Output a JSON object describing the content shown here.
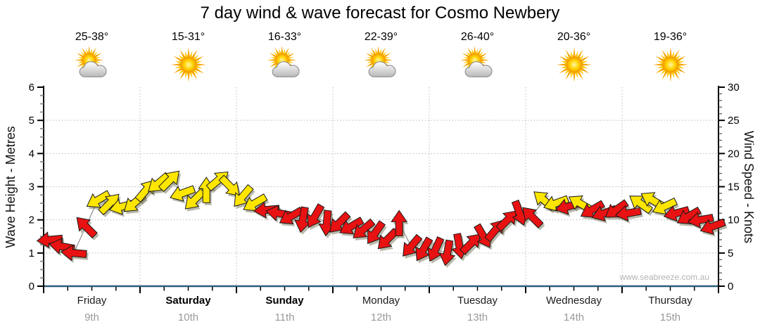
{
  "page": {
    "watermark": "www.seabreeze.com.au"
  },
  "chart_data": {
    "type": "scatter",
    "marker": "wind-direction-arrow",
    "title": "7 day wind & wave forecast for Cosmo Newbery",
    "left_axis": {
      "label": "Wave Height - Metres",
      "min": 0,
      "max": 6,
      "major_ticks": [
        0,
        1,
        2,
        3,
        4,
        5,
        6
      ],
      "minor_step": 0.25
    },
    "right_axis": {
      "label": "Wind Speed - Knots",
      "min": 0,
      "max": 30,
      "major_ticks": [
        0,
        5,
        10,
        15,
        20,
        25,
        30
      ],
      "minor_step": 1
    },
    "x_axis": {
      "days": 7,
      "points_per_day": 8,
      "interval_hours": 3,
      "minor_ticks_per_day": 4,
      "grid": "dotted at day boundaries and whole metres"
    },
    "days": [
      {
        "name": "Friday",
        "date": "9th",
        "temp": "25-38°",
        "icon": "sun-cloud",
        "bold": false
      },
      {
        "name": "Saturday",
        "date": "10th",
        "temp": "15-31°",
        "icon": "sun",
        "bold": true
      },
      {
        "name": "Sunday",
        "date": "11th",
        "temp": "16-33°",
        "icon": "sun-cloud",
        "bold": true
      },
      {
        "name": "Monday",
        "date": "12th",
        "temp": "22-39°",
        "icon": "sun-cloud",
        "bold": false
      },
      {
        "name": "Tuesday",
        "date": "13th",
        "temp": "26-40°",
        "icon": "sun-cloud",
        "bold": false
      },
      {
        "name": "Wednesday",
        "date": "14th",
        "temp": "20-36°",
        "icon": "sun",
        "bold": false
      },
      {
        "name": "Thursday",
        "date": "15th",
        "temp": "19-36°",
        "icon": "sun",
        "bold": false
      }
    ],
    "points_format": "[knots, arrow_rotation_deg (0=east, clockwise), color R=red Y=yellow], one point every 3 hours from Friday 00:00",
    "points": [
      [
        7,
        175,
        "R"
      ],
      [
        6,
        190,
        "R"
      ],
      [
        5,
        185,
        "R"
      ],
      [
        9,
        -135,
        "R"
      ],
      [
        13,
        150,
        "Y"
      ],
      [
        12.5,
        -45,
        "Y"
      ],
      [
        12,
        165,
        "Y"
      ],
      [
        12.5,
        140,
        "Y"
      ],
      [
        14.5,
        -50,
        "Y"
      ],
      [
        15.5,
        140,
        "Y"
      ],
      [
        16,
        -45,
        "Y"
      ],
      [
        14,
        160,
        "Y"
      ],
      [
        13,
        135,
        "Y"
      ],
      [
        14.5,
        -90,
        "Y"
      ],
      [
        16,
        -40,
        "Y"
      ],
      [
        15,
        45,
        "Y"
      ],
      [
        13.5,
        130,
        "Y"
      ],
      [
        12.5,
        150,
        "Y"
      ],
      [
        11.5,
        175,
        "R"
      ],
      [
        11,
        190,
        "R"
      ],
      [
        10.5,
        150,
        "R"
      ],
      [
        10,
        100,
        "R"
      ],
      [
        10.5,
        120,
        "R"
      ],
      [
        9.5,
        95,
        "R"
      ],
      [
        9.5,
        135,
        "R"
      ],
      [
        9,
        150,
        "R"
      ],
      [
        8.5,
        140,
        "R"
      ],
      [
        8,
        125,
        "R"
      ],
      [
        7,
        135,
        "R"
      ],
      [
        9.5,
        -90,
        "R"
      ],
      [
        6,
        130,
        "R"
      ],
      [
        5.5,
        120,
        "R"
      ],
      [
        5.5,
        115,
        "R"
      ],
      [
        5,
        100,
        "R"
      ],
      [
        6,
        80,
        "R"
      ],
      [
        6.5,
        -45,
        "R"
      ],
      [
        7.5,
        60,
        "R"
      ],
      [
        8.5,
        -50,
        "R"
      ],
      [
        10,
        -45,
        "R"
      ],
      [
        11,
        70,
        "R"
      ],
      [
        10.5,
        -135,
        "R"
      ],
      [
        13,
        -140,
        "Y"
      ],
      [
        12.5,
        160,
        "Y"
      ],
      [
        12,
        165,
        "R"
      ],
      [
        12.5,
        -150,
        "Y"
      ],
      [
        11.5,
        150,
        "R"
      ],
      [
        11,
        160,
        "R"
      ],
      [
        11.5,
        145,
        "R"
      ],
      [
        11,
        170,
        "R"
      ],
      [
        12.5,
        -145,
        "Y"
      ],
      [
        13,
        -150,
        "Y"
      ],
      [
        12,
        155,
        "Y"
      ],
      [
        11,
        165,
        "R"
      ],
      [
        10.5,
        150,
        "R"
      ],
      [
        10,
        170,
        "R"
      ],
      [
        9,
        160,
        "R"
      ]
    ],
    "colors": {
      "Y": "#ffe600",
      "R": "#e81212",
      "arrow_outline": "#1a1a1a",
      "x_axis_line": "#2b5d7c",
      "grid": "#b9b9b9",
      "connector_line": "#949494"
    },
    "legend": "none"
  }
}
